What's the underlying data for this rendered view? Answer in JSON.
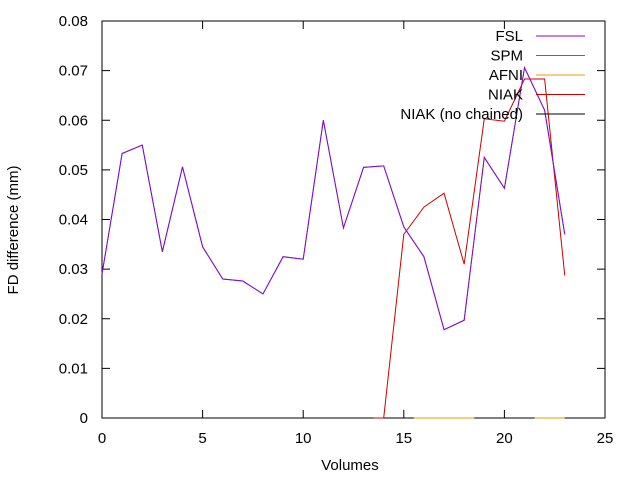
{
  "chart_data": {
    "type": "line",
    "title": "",
    "xlabel": "Volumes",
    "ylabel": "FD difference (mm)",
    "xlim": [
      0,
      25
    ],
    "ylim": [
      0,
      0.08
    ],
    "x_ticks": [
      0,
      5,
      10,
      15,
      20,
      25
    ],
    "y_ticks": [
      0,
      0.01,
      0.02,
      0.03,
      0.04,
      0.05,
      0.06,
      0.07,
      0.08
    ],
    "x_tick_labels": [
      "0",
      "5",
      "10",
      "15",
      "20",
      "25"
    ],
    "y_tick_labels": [
      "0",
      "0.01",
      "0.02",
      "0.03",
      "0.04",
      "0.05",
      "0.06",
      "0.07",
      "0.08"
    ],
    "grid": false,
    "legend_position": "top-right",
    "series": [
      {
        "name": "FSL",
        "color": "#9400d3",
        "x": [
          0,
          1,
          2,
          3,
          4,
          5,
          6,
          7,
          8,
          9,
          10,
          11,
          12,
          13,
          14,
          15,
          16,
          17,
          18,
          19,
          20,
          21,
          22,
          23
        ],
        "values": [
          0.029,
          0.0533,
          0.055,
          0.0335,
          0.0506,
          0.0345,
          0.028,
          0.0276,
          0.025,
          0.0325,
          0.032,
          0.06,
          0.0383,
          0.0505,
          0.0508,
          0.0385,
          0.0325,
          0.0178,
          0.0197,
          0.0525,
          0.0463,
          0.0706,
          0.062,
          0.037
        ]
      },
      {
        "name": "SPM",
        "color": "#009e73",
        "x": [
          0,
          1,
          2,
          3,
          4,
          5,
          6,
          7,
          8,
          9,
          10,
          11,
          12,
          13,
          14,
          15,
          16,
          17,
          18,
          19,
          20,
          21,
          22,
          23
        ],
        "values": [
          0.029,
          0.0533,
          0.055,
          0.0335,
          0.0506,
          0.0345,
          0.028,
          0.0276,
          0.025,
          0.0325,
          0.032,
          0.06,
          0.0383,
          0.0505,
          0.0508,
          0.0385,
          0.0325,
          0.0178,
          0.0197,
          0.0525,
          0.0463,
          0.0706,
          0.062,
          0.037
        ]
      },
      {
        "name": "AFNI",
        "color": "#e69f00",
        "x": [
          15.5,
          16,
          17,
          18.5,
          19
        ],
        "values": [
          0,
          0,
          0,
          0,
          null
        ],
        "segments": [
          [
            [
              15.5,
              0
            ],
            [
              18.5,
              0
            ]
          ],
          [
            [
              21.5,
              0
            ],
            [
              23,
              0
            ]
          ]
        ]
      },
      {
        "name": "NIAK",
        "color": "#cc0000",
        "x": [
          14,
          15,
          16,
          17,
          18,
          19,
          20,
          21,
          22,
          23
        ],
        "values": [
          0,
          0.037,
          0.0425,
          0.0453,
          0.031,
          0.0603,
          0.0598,
          0.0683,
          0.0683,
          0.0287
        ],
        "start_segment": [
          [
            13.5,
            0
          ],
          [
            14,
            0
          ]
        ]
      },
      {
        "name": "NIAK (no chained)",
        "color": "#000000",
        "x": [],
        "values": []
      }
    ]
  }
}
